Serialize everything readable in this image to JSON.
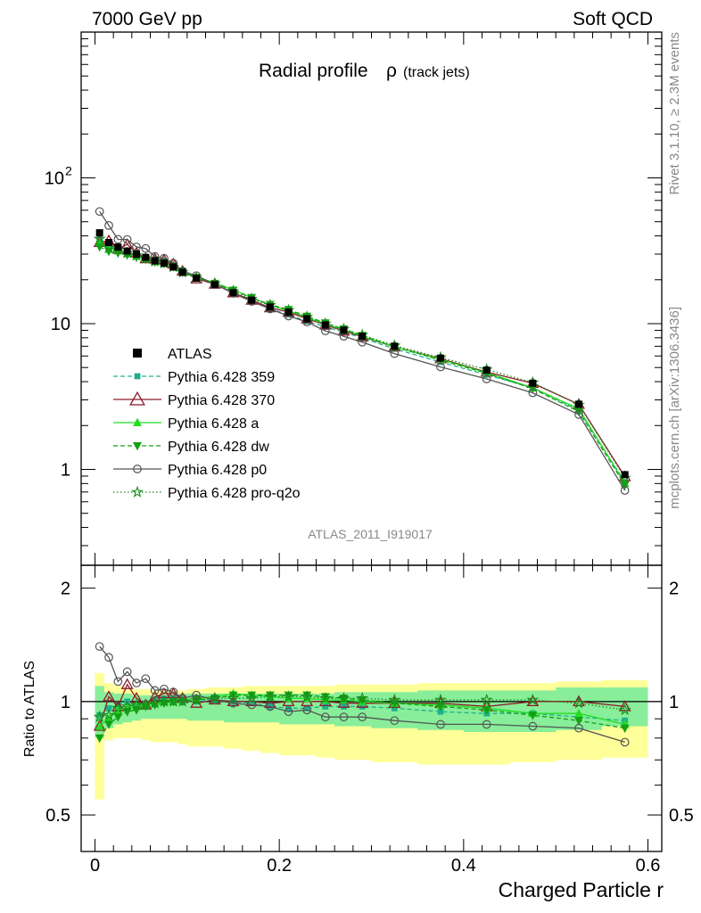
{
  "header": {
    "left": "7000 GeV pp",
    "right": "Soft QCD"
  },
  "side": {
    "top": "Rivet 3.1.10, ≥ 2.3M events",
    "bottom": "mcplots.cern.ch [arXiv:1306.3436]"
  },
  "main": {
    "title": "Radial profile",
    "title_symbol": "ρ",
    "title_note": "(track jets)",
    "watermark": "ATLAS_2011_I919017",
    "y_ticks": [
      {
        "v": 1,
        "t": "1"
      },
      {
        "v": 10,
        "t": "10"
      },
      {
        "v": 100,
        "t": "10",
        "sup": "2"
      }
    ]
  },
  "ratio": {
    "ylabel": "Ratio to ATLAS",
    "y_ticks": [
      {
        "v": 0.5,
        "t": "0.5"
      },
      {
        "v": 1,
        "t": "1"
      },
      {
        "v": 2,
        "t": "2"
      }
    ]
  },
  "xaxis": {
    "label": "Charged Particle r",
    "ticks": [
      {
        "v": 0,
        "t": "0"
      },
      {
        "v": 0.2,
        "t": "0.2"
      },
      {
        "v": 0.4,
        "t": "0.4"
      },
      {
        "v": 0.6,
        "t": "0.6"
      }
    ]
  },
  "colors": {
    "data": "#000000",
    "p359": "#20b090",
    "p370": "#8b1a2a",
    "pa": "#22dd22",
    "pdw": "#14a014",
    "pp0": "#555555",
    "ppro": "#1a8c1a",
    "band_yellow": "#ffff99",
    "band_green": "#88ee99"
  },
  "chart_data": {
    "type": "line",
    "x": [
      0.005,
      0.015,
      0.025,
      0.035,
      0.045,
      0.055,
      0.065,
      0.075,
      0.085,
      0.095,
      0.11,
      0.13,
      0.15,
      0.17,
      0.19,
      0.21,
      0.23,
      0.25,
      0.27,
      0.29,
      0.325,
      0.375,
      0.425,
      0.475,
      0.525,
      0.575
    ],
    "data": {
      "name": "ATLAS",
      "values": [
        42,
        36,
        33.5,
        31.5,
        30,
        28.5,
        27,
        26,
        24.5,
        22.5,
        20.5,
        18.5,
        16.3,
        14.5,
        13,
        12,
        10.8,
        9.8,
        9,
        8.2,
        7,
        5.8,
        4.8,
        3.9,
        2.8,
        0.92
      ]
    },
    "series": [
      {
        "name": "Pythia 6.428 359",
        "color": "#20b090",
        "marker": "square",
        "dash": "5,3",
        "ratio": [
          0.92,
          0.96,
          0.98,
          1.0,
          0.98,
          0.99,
          1.01,
          1.02,
          1.02,
          1.0,
          1.0,
          1.01,
          1.0,
          0.99,
          0.97,
          0.96,
          0.96,
          0.97,
          0.97,
          0.97,
          0.96,
          0.94,
          0.93,
          0.93,
          0.91,
          0.89
        ]
      },
      {
        "name": "Pythia 6.428 370",
        "color": "#8b1a2a",
        "marker": "triangle-open",
        "dash": "",
        "ratio": [
          0.86,
          1.03,
          0.97,
          1.11,
          1.02,
          0.98,
          1.03,
          1.05,
          1.05,
          1.02,
          0.99,
          1.01,
          1.0,
          1.0,
          0.99,
          1.0,
          1.0,
          1.0,
          0.99,
          0.99,
          0.99,
          0.99,
          0.97,
          1.0,
          1.0,
          0.97
        ]
      },
      {
        "name": "Pythia 6.428 a",
        "color": "#22dd22",
        "marker": "triangle-up",
        "dash": "",
        "ratio": [
          0.86,
          0.9,
          0.95,
          0.96,
          0.97,
          0.98,
          0.99,
          1.0,
          1.0,
          1.01,
          1.02,
          1.03,
          1.05,
          1.04,
          1.03,
          1.02,
          1.02,
          1.01,
          1.01,
          1.0,
          0.99,
          0.98,
          0.96,
          0.93,
          0.93,
          0.87
        ]
      },
      {
        "name": "Pythia 6.428 dw",
        "color": "#14a014",
        "marker": "triangle-down",
        "dash": "5,3",
        "ratio": [
          0.8,
          0.87,
          0.91,
          0.94,
          0.95,
          0.97,
          0.98,
          0.99,
          1.0,
          1.0,
          1.01,
          1.02,
          1.04,
          1.04,
          1.04,
          1.04,
          1.04,
          1.03,
          1.02,
          1.01,
          0.99,
          0.97,
          0.95,
          0.92,
          0.89,
          0.85
        ]
      },
      {
        "name": "Pythia 6.428 p0",
        "color": "#555555",
        "marker": "circle-open",
        "dash": "",
        "ratio": [
          1.4,
          1.31,
          1.13,
          1.2,
          1.12,
          1.15,
          1.07,
          1.08,
          1.06,
          1.02,
          1.04,
          1.01,
          0.99,
          0.98,
          0.97,
          0.94,
          0.95,
          0.91,
          0.91,
          0.91,
          0.89,
          0.87,
          0.87,
          0.86,
          0.85,
          0.78
        ]
      },
      {
        "name": "Pythia 6.428 pro-q2o",
        "color": "#1a8c1a",
        "marker": "star-open",
        "dash": "1.5,2.5",
        "ratio": [
          0.91,
          0.92,
          0.96,
          0.97,
          0.98,
          0.98,
          0.99,
          1.0,
          1.0,
          1.0,
          1.01,
          1.02,
          1.02,
          1.02,
          1.03,
          1.03,
          1.03,
          1.02,
          1.02,
          1.02,
          1.01,
          1.01,
          1.01,
          1.01,
          0.99,
          0.95
        ]
      }
    ],
    "band_x": [
      0.0,
      0.01,
      0.02,
      0.03,
      0.04,
      0.05,
      0.06,
      0.07,
      0.08,
      0.09,
      0.1,
      0.12,
      0.14,
      0.16,
      0.18,
      0.2,
      0.22,
      0.24,
      0.26,
      0.28,
      0.3,
      0.35,
      0.4,
      0.45,
      0.5,
      0.55,
      0.6
    ],
    "band_yellow": [
      [
        0.55,
        1.19
      ],
      [
        0.79,
        1.12
      ],
      [
        0.8,
        1.1
      ],
      [
        0.8,
        1.08
      ],
      [
        0.8,
        1.08
      ],
      [
        0.79,
        1.08
      ],
      [
        0.78,
        1.07
      ],
      [
        0.78,
        1.07
      ],
      [
        0.78,
        1.07
      ],
      [
        0.77,
        1.07
      ],
      [
        0.76,
        1.08
      ],
      [
        0.76,
        1.09
      ],
      [
        0.75,
        1.09
      ],
      [
        0.74,
        1.1
      ],
      [
        0.73,
        1.1
      ],
      [
        0.72,
        1.1
      ],
      [
        0.72,
        1.1
      ],
      [
        0.71,
        1.1
      ],
      [
        0.7,
        1.11
      ],
      [
        0.7,
        1.11
      ],
      [
        0.69,
        1.11
      ],
      [
        0.68,
        1.12
      ],
      [
        0.68,
        1.12
      ],
      [
        0.69,
        1.12
      ],
      [
        0.7,
        1.13
      ],
      [
        0.71,
        1.14
      ]
    ],
    "band_green": [
      [
        0.8,
        1.1
      ],
      [
        0.85,
        1.06
      ],
      [
        0.87,
        1.05
      ],
      [
        0.88,
        1.05
      ],
      [
        0.89,
        1.04
      ],
      [
        0.9,
        1.04
      ],
      [
        0.9,
        1.04
      ],
      [
        0.9,
        1.04
      ],
      [
        0.9,
        1.04
      ],
      [
        0.9,
        1.05
      ],
      [
        0.89,
        1.05
      ],
      [
        0.89,
        1.05
      ],
      [
        0.88,
        1.05
      ],
      [
        0.88,
        1.05
      ],
      [
        0.88,
        1.05
      ],
      [
        0.87,
        1.05
      ],
      [
        0.87,
        1.05
      ],
      [
        0.87,
        1.05
      ],
      [
        0.86,
        1.06
      ],
      [
        0.86,
        1.06
      ],
      [
        0.85,
        1.06
      ],
      [
        0.84,
        1.07
      ],
      [
        0.83,
        1.07
      ],
      [
        0.83,
        1.07
      ],
      [
        0.84,
        1.09
      ],
      [
        0.86,
        1.09
      ]
    ],
    "xlim": [
      -0.015,
      0.615
    ],
    "ylim_main": [
      0.22,
      1000
    ],
    "ylim_ratio": [
      0.4,
      2.3
    ],
    "log_y_main": true,
    "log_y_ratio": true,
    "legend_position": "left-middle"
  }
}
